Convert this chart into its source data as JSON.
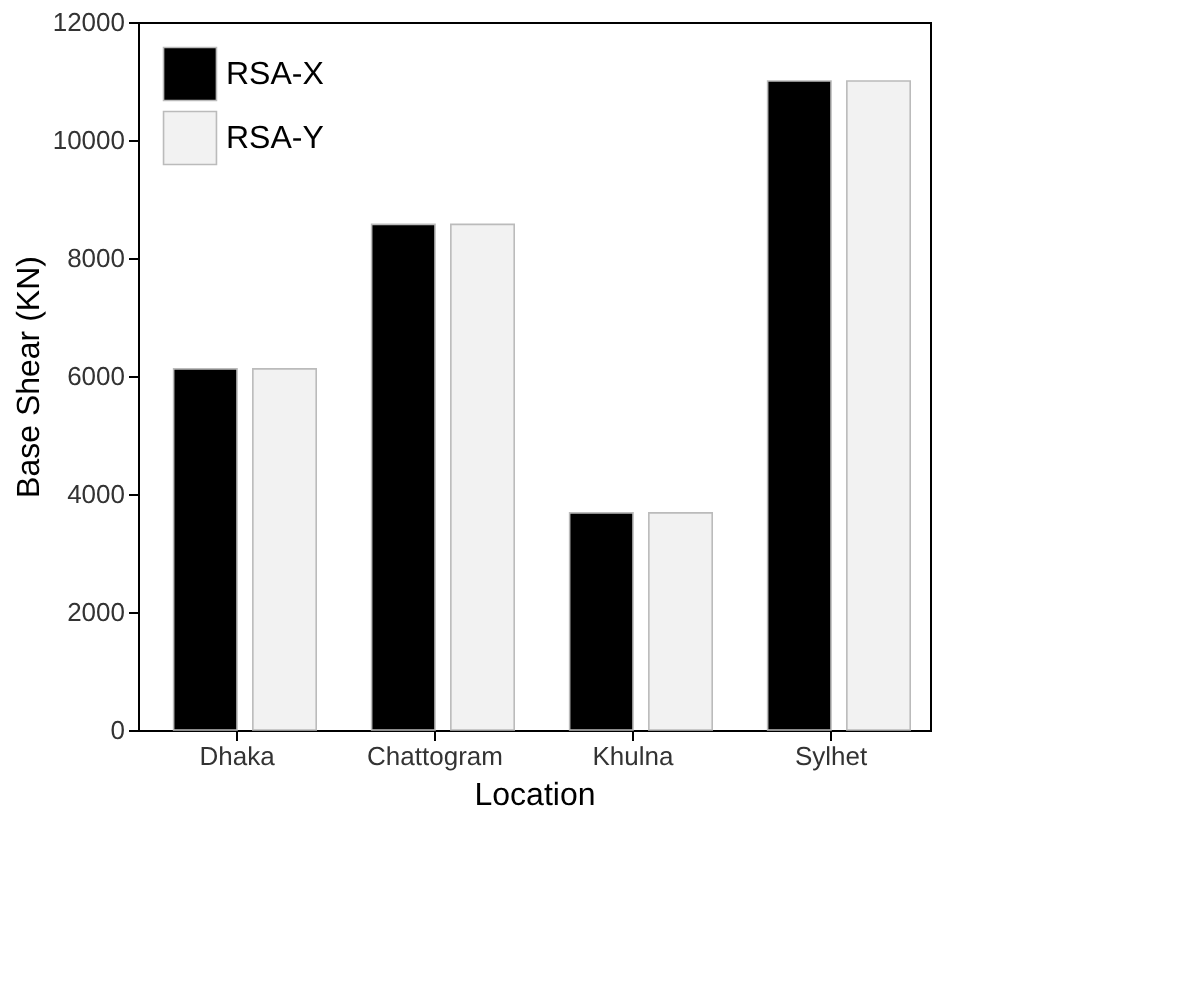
{
  "chart_data": {
    "type": "bar",
    "xlabel": "Location",
    "ylabel": "Base Shear (KN)",
    "categories": [
      "Dhaka",
      "Chattogram",
      "Khulna",
      "Sylhet"
    ],
    "series": [
      {
        "name": "RSA-X",
        "color": "#000000",
        "values": [
          6120,
          8570,
          3680,
          11000
        ]
      },
      {
        "name": "RSA-Y",
        "color": "#f2f2f2",
        "values": [
          6120,
          8570,
          3680,
          11000
        ]
      }
    ],
    "ylim": [
      0,
      12000
    ],
    "yticks": [
      0,
      2000,
      4000,
      6000,
      8000,
      10000,
      12000
    ],
    "grid": false,
    "legend": "top left"
  }
}
